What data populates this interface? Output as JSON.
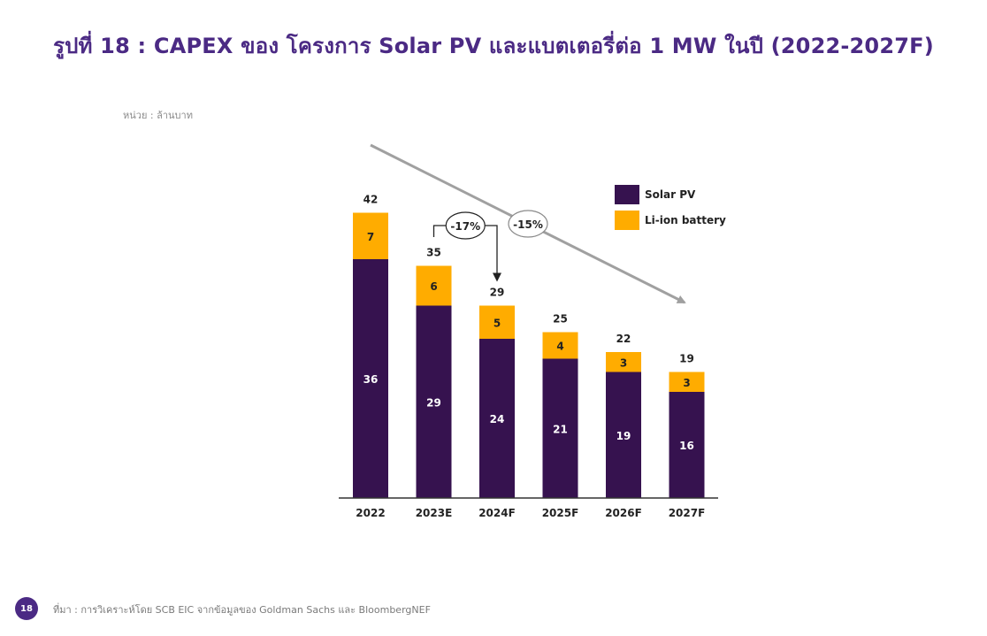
{
  "page": {
    "title": "รูปที่ 18 : CAPEX ของ โครงการ Solar PV และแบตเตอรี่ต่อ 1 MW ในปี (2022-2027F)",
    "unit_label": "หน่วย : ล้านบาท",
    "page_number": "18",
    "source": "ที่มา : การวิเคราะห์โดย SCB EIC จากข้อมูลของ Goldman Sachs และ BloombergNEF"
  },
  "colors": {
    "title": "#4b2a84",
    "solar_pv": "#36124f",
    "battery": "#ffac00",
    "trend_arrow": "#a0a0a0"
  },
  "chart_data": {
    "type": "bar",
    "stacked": true,
    "categories": [
      "2022",
      "2023E",
      "2024F",
      "2025F",
      "2026F",
      "2027F"
    ],
    "series": [
      {
        "name": "Solar PV",
        "values": [
          36,
          29,
          24,
          21,
          19,
          16
        ],
        "color": "#36124f"
      },
      {
        "name": "Li-ion battery",
        "values": [
          7,
          6,
          5,
          4,
          3,
          3
        ],
        "color": "#ffac00"
      }
    ],
    "totals": [
      42,
      35,
      29,
      25,
      22,
      19
    ],
    "ylim": [
      0,
      45
    ],
    "legend_position": "top-right",
    "grid": false,
    "annotations": [
      {
        "text": "-17%",
        "from": "2023E",
        "to": "2024F"
      },
      {
        "text": "-15%",
        "from": "2022",
        "to": "2027F"
      }
    ]
  }
}
